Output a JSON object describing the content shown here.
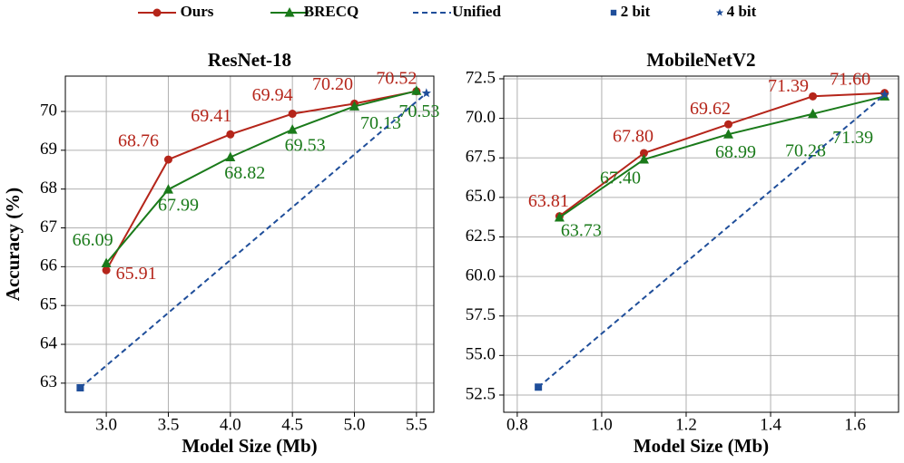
{
  "chart_data": [
    {
      "type": "line",
      "title": "ResNet-18",
      "xlabel": "Model Size (Mb)",
      "ylabel": "Accuracy (%)",
      "xlim": [
        2.67,
        5.64
      ],
      "ylim": [
        62.25,
        70.91
      ],
      "grid": true,
      "xticks": [
        {
          "value": 3,
          "label": "3.0"
        },
        3.5,
        {
          "value": 4,
          "label": "4.0"
        },
        4.5,
        {
          "value": 5,
          "label": "5.0"
        },
        5.5
      ],
      "yticks": [
        63,
        64,
        65,
        66,
        67,
        68,
        69,
        70
      ],
      "series": [
        {
          "name": "Ours",
          "color": "#b5251a",
          "marker": "circle",
          "x": [
            3.0,
            3.5,
            4.0,
            4.5,
            5.0,
            5.5
          ],
          "values": [
            65.91,
            68.76,
            69.41,
            69.94,
            70.2,
            70.52
          ],
          "value_labels": [
            "65.91",
            "68.76",
            "69.41",
            "69.94",
            "70.20",
            "70.52"
          ]
        },
        {
          "name": "BRECQ",
          "color": "#1a7a1a",
          "marker": "triangle",
          "x": [
            3.0,
            3.5,
            4.0,
            4.5,
            5.0,
            5.5
          ],
          "values": [
            66.09,
            67.99,
            68.82,
            69.53,
            70.13,
            70.53
          ],
          "value_labels": [
            "66.09",
            "67.99",
            "68.82",
            "69.53",
            "70.13",
            "70.53"
          ]
        },
        {
          "name": "Unified",
          "color": "#1f4e9a",
          "dashed": true,
          "x": [
            2.79,
            5.58
          ],
          "values": [
            62.88,
            70.47
          ]
        },
        {
          "name": "2 bit",
          "color": "#1f4e9a",
          "marker": "square",
          "no_line": true,
          "x": [
            2.79
          ],
          "values": [
            62.88
          ]
        },
        {
          "name": "4 bit",
          "color": "#1f4e9a",
          "marker": "star",
          "no_line": true,
          "x": [
            5.58
          ],
          "values": [
            70.47
          ]
        }
      ]
    },
    {
      "type": "line",
      "title": "MobileNetV2",
      "xlabel": "Model Size (Mb)",
      "xlim": [
        0.768,
        1.703
      ],
      "ylim": [
        51.41,
        72.67
      ],
      "grid": true,
      "xticks": [
        0.8,
        {
          "value": 1,
          "label": "1.0"
        },
        1.2,
        1.4,
        1.6
      ],
      "yticks": [
        52.5,
        {
          "value": 55,
          "label": "55.0"
        },
        57.5,
        {
          "value": 60,
          "label": "60.0"
        },
        62.5,
        {
          "value": 65,
          "label": "65.0"
        },
        67.5,
        {
          "value": 70,
          "label": "70.0"
        },
        72.5
      ],
      "series": [
        {
          "color": "#b5251a",
          "marker": "circle",
          "x": [
            0.9,
            1.1,
            1.3,
            1.5,
            1.67
          ],
          "values": [
            63.81,
            67.8,
            69.62,
            71.39,
            71.6
          ],
          "value_labels": [
            "63.81",
            "67.80",
            "69.62",
            "71.39",
            "71.60"
          ]
        },
        {
          "color": "#1a7a1a",
          "marker": "triangle",
          "x": [
            0.9,
            1.1,
            1.3,
            1.5,
            1.67
          ],
          "values": [
            63.73,
            67.4,
            68.99,
            70.28,
            71.39
          ],
          "value_labels": [
            "63.73",
            "67.40",
            "68.99",
            "70.28",
            "71.39"
          ]
        },
        {
          "color": "#1f4e9a",
          "dashed": true,
          "x": [
            0.85,
            1.67
          ],
          "values": [
            53.0,
            71.5
          ]
        },
        {
          "color": "#1f4e9a",
          "marker": "square",
          "no_line": true,
          "x": [
            0.85
          ],
          "values": [
            53.0
          ]
        },
        {
          "color": "#1f4e9a",
          "marker": "star",
          "no_line": true,
          "x": [
            1.67
          ],
          "values": [
            71.5
          ]
        }
      ]
    }
  ]
}
